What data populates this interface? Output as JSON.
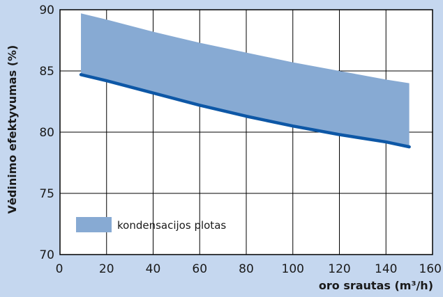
{
  "colors": {
    "background": "#c5d7ef",
    "plot_background": "#ffffff",
    "band_fill": "#87aad3",
    "line": "#0d57a6",
    "grid": "#000000",
    "text": "#1a1a1a"
  },
  "chart_data": {
    "type": "area",
    "title": "",
    "xlabel": "oro srautas (m³/h)",
    "ylabel": "Vėdinimo efektyvumas (%)",
    "xlim": [
      0,
      160
    ],
    "ylim": [
      70,
      90
    ],
    "x_ticks": [
      "0",
      "20",
      "40",
      "60",
      "80",
      "100",
      "120",
      "140",
      "160"
    ],
    "y_ticks": [
      "70",
      "75",
      "80",
      "85",
      "90"
    ],
    "grid": true,
    "legend": {
      "position": "bottom-left",
      "label": "kondensacijos plotas"
    },
    "series": [
      {
        "name": "kondensacijos plotas",
        "kind": "band",
        "x": [
          9,
          20,
          40,
          60,
          80,
          100,
          120,
          140,
          150
        ],
        "upper": [
          89.7,
          89.2,
          88.2,
          87.3,
          86.5,
          85.7,
          85.0,
          84.3,
          84.0
        ],
        "lower": [
          84.7,
          84.2,
          83.2,
          82.2,
          81.3,
          80.5,
          79.8,
          79.2,
          78.8
        ]
      },
      {
        "kind": "line",
        "x": [
          9,
          20,
          40,
          60,
          80,
          100,
          120,
          140,
          150
        ],
        "y": [
          84.7,
          84.2,
          83.2,
          82.2,
          81.3,
          80.5,
          79.8,
          79.2,
          78.8
        ]
      }
    ]
  }
}
